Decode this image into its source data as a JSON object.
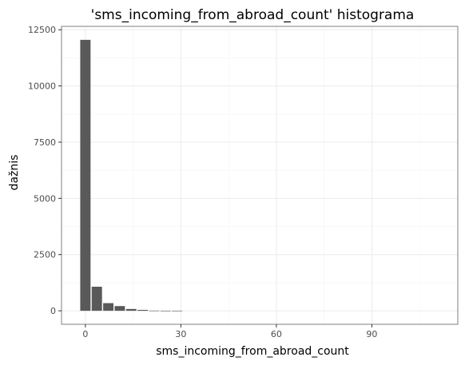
{
  "chart_data": {
    "type": "bar",
    "title": "'sms_incoming_from_abroad_count' histograma",
    "xlabel": "sms_incoming_from_abroad_count",
    "ylabel": "dažnis",
    "x_ticks": [
      0,
      30,
      60,
      90
    ],
    "y_ticks": [
      0,
      2500,
      5000,
      7500,
      10000,
      12500
    ],
    "xlim": [
      -7.5,
      117
    ],
    "ylim": [
      -600,
      12650
    ],
    "bin_width": 3.6,
    "bins": [
      {
        "x": 0,
        "count": 12050
      },
      {
        "x": 3.6,
        "count": 1070
      },
      {
        "x": 7.2,
        "count": 340
      },
      {
        "x": 10.8,
        "count": 210
      },
      {
        "x": 14.4,
        "count": 80
      },
      {
        "x": 18,
        "count": 40
      },
      {
        "x": 21.6,
        "count": 8
      },
      {
        "x": 25.2,
        "count": 4
      },
      {
        "x": 28.8,
        "count": 2
      }
    ],
    "colors": {
      "bar": "#595959",
      "grid": "#ebebeb",
      "border": "#7f7f7f"
    },
    "grid": true,
    "legend": "none"
  }
}
